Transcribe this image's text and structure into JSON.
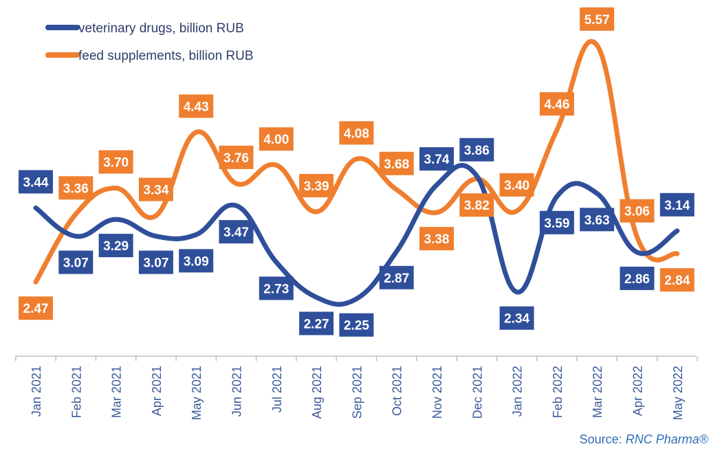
{
  "colors": {
    "series1": "#2f4f9a",
    "series2": "#ef7f2f",
    "axis": "#bfbfbf"
  },
  "chart_data": {
    "type": "line",
    "title": "",
    "xlabel": "",
    "ylabel": "",
    "ylim": [
      1.5,
      6.0
    ],
    "grid": false,
    "legend": "top-left",
    "categories": [
      "Jan 2021",
      "Feb 2021",
      "Mar 2021",
      "Apr 2021",
      "May 2021",
      "Jun 2021",
      "Jul 2021",
      "Aug 2021",
      "Sep 2021",
      "Oct 2021",
      "Nov 2021",
      "Dec 2021",
      "Jan 2022",
      "Feb 2022",
      "Mar 2022",
      "Apr 2022",
      "May 2022"
    ],
    "series": [
      {
        "name": "veterinary drugs, billion RUB",
        "values": [
          3.44,
          3.07,
          3.29,
          3.07,
          3.09,
          3.47,
          2.73,
          2.27,
          2.25,
          2.87,
          3.74,
          3.86,
          2.34,
          3.59,
          3.63,
          2.86,
          3.14
        ],
        "labels": [
          "3.44",
          "3.07",
          "3.29",
          "3.07",
          "3.09",
          "3.47",
          "2.73",
          "2.27",
          "2.25",
          "2.87",
          "3.74",
          "3.86",
          "2.34",
          "3.59",
          "3.63",
          "2.86",
          "3.14"
        ]
      },
      {
        "name": "feed supplements, billion RUB",
        "values": [
          2.47,
          3.36,
          3.7,
          3.34,
          4.43,
          3.76,
          4.0,
          3.39,
          4.08,
          3.68,
          3.38,
          3.82,
          3.4,
          4.46,
          5.57,
          3.06,
          2.84
        ],
        "labels": [
          "2.47",
          "3.36",
          "3.70",
          "3.34",
          "4.43",
          "3.76",
          "4.00",
          "3.39",
          "4.08",
          "3.68",
          "3.38",
          "3.82",
          "3.40",
          "4.46",
          "5.57",
          "3.06",
          "2.84"
        ]
      }
    ]
  },
  "source": {
    "prefix": "Source: ",
    "name": "RNC Pharma®"
  }
}
